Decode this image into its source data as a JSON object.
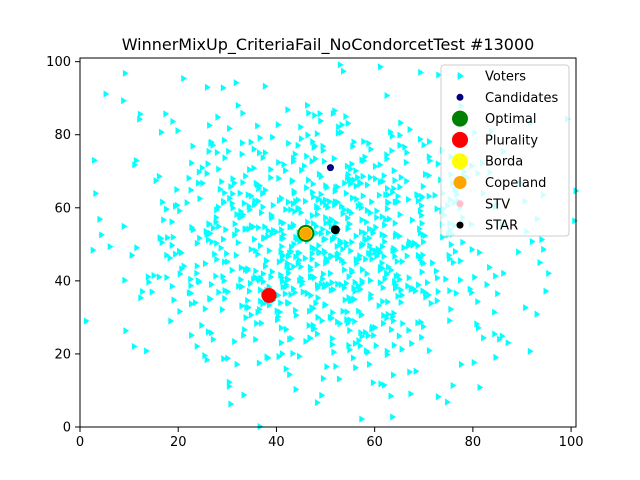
{
  "chart_data": {
    "type": "scatter",
    "title": "WinnerMixUp_CriteriaFail_NoCondorcetTest #13000",
    "xlabel": "",
    "ylabel": "",
    "xlim": [
      0,
      101
    ],
    "ylim": [
      0,
      101
    ],
    "xticks": [
      "0",
      "20",
      "40",
      "60",
      "80",
      "100"
    ],
    "yticks": [
      "0",
      "20",
      "40",
      "60",
      "80",
      "100"
    ],
    "grid": false,
    "legend_position": "top-right",
    "voters": {
      "name": "Voters",
      "color": "#00ffff",
      "marker": "triangle-right",
      "count": 1000,
      "distribution": "gaussian",
      "center": [
        49,
        50
      ],
      "spread": [
        19,
        19
      ]
    },
    "candidates": {
      "name": "Candidates",
      "color": "#000080",
      "points": [
        {
          "x": 51,
          "y": 71
        },
        {
          "x": 46,
          "y": 53
        },
        {
          "x": 52,
          "y": 54
        },
        {
          "x": 39,
          "y": 36
        }
      ]
    },
    "winners": [
      {
        "name": "Optimal",
        "color": "#008000",
        "x": 46,
        "y": 53,
        "size": 14
      },
      {
        "name": "Plurality",
        "color": "#ff0000",
        "x": 38.5,
        "y": 36,
        "size": 12
      },
      {
        "name": "Borda",
        "color": "#ffff00",
        "x": 46,
        "y": 53,
        "size": 10
      },
      {
        "name": "Copeland",
        "color": "#ffa500",
        "x": 46,
        "y": 53,
        "size": 9
      },
      {
        "name": "STV",
        "color": "#ffc0cb",
        "x": 52,
        "y": 54,
        "size": 6
      },
      {
        "name": "STAR",
        "color": "#000000",
        "x": 52,
        "y": 54,
        "size": 6
      }
    ],
    "legend": [
      {
        "label": "Voters",
        "color": "#00ffff",
        "marker": "triangle-right"
      },
      {
        "label": "Candidates",
        "color": "#000080",
        "marker": "circle-small"
      },
      {
        "label": "Optimal",
        "color": "#008000",
        "marker": "circle-large"
      },
      {
        "label": "Plurality",
        "color": "#ff0000",
        "marker": "circle-large"
      },
      {
        "label": "Borda",
        "color": "#ffff00",
        "marker": "circle-large"
      },
      {
        "label": "Copeland",
        "color": "#ffa500",
        "marker": "circle-medium"
      },
      {
        "label": "STV",
        "color": "#ffc0cb",
        "marker": "circle-small"
      },
      {
        "label": "STAR",
        "color": "#000000",
        "marker": "circle-small"
      }
    ]
  }
}
